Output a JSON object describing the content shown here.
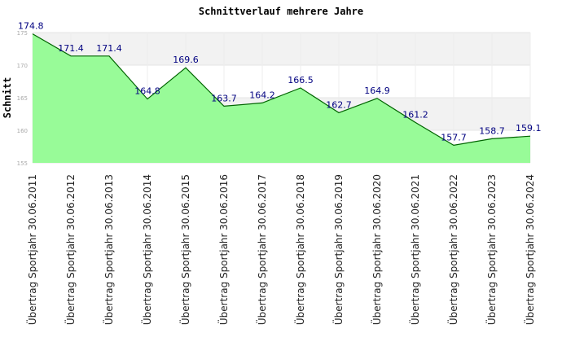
{
  "chart_data": {
    "type": "area",
    "title": "Schnittverlauf mehrere Jahre",
    "xlabel": "",
    "ylabel": "Schnitt",
    "ylim": [
      155,
      175
    ],
    "yticks": [
      155,
      160,
      165,
      170,
      175
    ],
    "grid": true,
    "colors": {
      "fill": "#98fb98",
      "line": "#006400",
      "band": "#f2f2f2",
      "label": "#000080"
    },
    "categories": [
      "Übertrag Sportjahr 30.06.2011",
      "Übertrag Sportjahr 30.06.2012",
      "Übertrag Sportjahr 30.06.2013",
      "Übertrag Sportjahr 30.06.2014",
      "Übertrag Sportjahr 30.06.2015",
      "Übertrag Sportjahr 30.06.2016",
      "Übertrag Sportjahr 30.06.2017",
      "Übertrag Sportjahr 30.06.2018",
      "Übertrag Sportjahr 30.06.2019",
      "Übertrag Sportjahr 30.06.2020",
      "Übertrag Sportjahr 30.06.2021",
      "Übertrag Sportjahr 30.06.2022",
      "Übertrag Sportjahr 30.06.2023",
      "Übertrag Sportjahr 30.06.2024"
    ],
    "values": [
      174.8,
      171.4,
      171.4,
      164.8,
      169.6,
      163.7,
      164.2,
      166.5,
      162.7,
      164.9,
      161.2,
      157.7,
      158.7,
      159.1
    ],
    "value_labels": [
      "174.8",
      "171.4",
      "171.4",
      "164.8",
      "169.6",
      "163.7",
      "164.2",
      "166.5",
      "162.7",
      "164.9",
      "161.2",
      "157.7",
      "158.7",
      "159.1"
    ]
  }
}
